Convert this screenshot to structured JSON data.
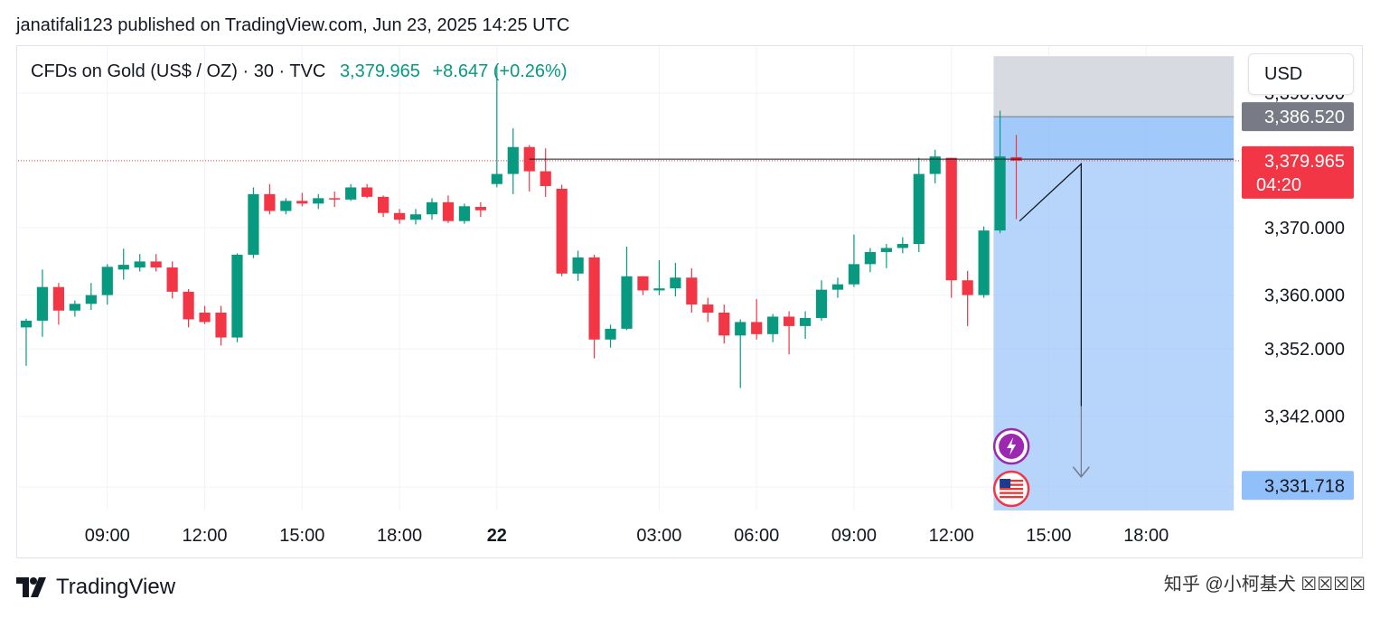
{
  "header": {
    "text": "janatifali123 published on TradingView.com, Jun 23, 2025 14:25 UTC"
  },
  "symbol": {
    "name": "CFDs on Gold (US$ / OZ) · 30 · TVC",
    "last": "3,379.965",
    "change": "+8.647 (+0.26%)"
  },
  "currency_button": "USD",
  "footer": {
    "brand": "TradingView",
    "watermark": "知乎 @小柯基犬 ☒☒☒☒"
  },
  "colors": {
    "up": "#089981",
    "down": "#f23645",
    "grid": "#f0f3fa",
    "stop_zone": "#d1d4dc",
    "target_zone": "#90bff9",
    "label_gray": "#787b86",
    "label_red": "#f23645",
    "label_blue": "#90bff9",
    "current_price_line": "#f23645"
  },
  "chart_data": {
    "type": "candlestick",
    "title": "CFDs on Gold (US$ / OZ) · 30 · TVC",
    "interval": "30",
    "grid": true,
    "ylim": [
      3328,
      3397
    ],
    "xlim": [
      -0.5,
      74.5
    ],
    "price_ticks": [
      "3,390.000",
      "3,370.000",
      "3,360.000",
      "3,352.000",
      "3,342.000"
    ],
    "price_tick_values": [
      3390,
      3370,
      3360,
      3352,
      3342
    ],
    "time_ticks": [
      {
        "label": "09:00",
        "index": 5,
        "bold": false
      },
      {
        "label": "12:00",
        "index": 11,
        "bold": false
      },
      {
        "label": "15:00",
        "index": 17,
        "bold": false
      },
      {
        "label": "18:00",
        "index": 23,
        "bold": false
      },
      {
        "label": "22",
        "index": 29,
        "bold": true
      },
      {
        "label": "03:00",
        "index": 39,
        "bold": false
      },
      {
        "label": "06:00",
        "index": 45,
        "bold": false
      },
      {
        "label": "09:00",
        "index": 51,
        "bold": false
      },
      {
        "label": "12:00",
        "index": 57,
        "bold": false
      },
      {
        "label": "15:00",
        "index": 63,
        "bold": false
      },
      {
        "label": "18:00",
        "index": 69,
        "bold": false
      }
    ],
    "candles": [
      {
        "o": 3355.2,
        "h": 3356.5,
        "l": 3349.5,
        "c": 3356.2
      },
      {
        "o": 3356.2,
        "h": 3363.8,
        "l": 3353.8,
        "c": 3361.2
      },
      {
        "o": 3361.2,
        "h": 3361.8,
        "l": 3355.6,
        "c": 3357.7
      },
      {
        "o": 3357.7,
        "h": 3359.2,
        "l": 3356.8,
        "c": 3358.7
      },
      {
        "o": 3358.7,
        "h": 3361.8,
        "l": 3357.8,
        "c": 3360.0
      },
      {
        "o": 3360.0,
        "h": 3364.6,
        "l": 3358.6,
        "c": 3364.2
      },
      {
        "o": 3363.8,
        "h": 3366.9,
        "l": 3362.3,
        "c": 3364.5
      },
      {
        "o": 3364.1,
        "h": 3366.1,
        "l": 3363.5,
        "c": 3365.0
      },
      {
        "o": 3365.0,
        "h": 3366.1,
        "l": 3363.5,
        "c": 3364.1
      },
      {
        "o": 3364.1,
        "h": 3365.0,
        "l": 3359.5,
        "c": 3360.5
      },
      {
        "o": 3360.5,
        "h": 3360.9,
        "l": 3355.2,
        "c": 3356.4
      },
      {
        "o": 3357.4,
        "h": 3358.4,
        "l": 3355.7,
        "c": 3356.0
      },
      {
        "o": 3357.4,
        "h": 3358.4,
        "l": 3352.5,
        "c": 3353.7
      },
      {
        "o": 3353.7,
        "h": 3366.2,
        "l": 3353.0,
        "c": 3366.0
      },
      {
        "o": 3366.0,
        "h": 3376.0,
        "l": 3365.5,
        "c": 3375.0
      },
      {
        "o": 3375.0,
        "h": 3376.5,
        "l": 3372.0,
        "c": 3372.5
      },
      {
        "o": 3372.5,
        "h": 3374.4,
        "l": 3372.0,
        "c": 3374.0
      },
      {
        "o": 3374.0,
        "h": 3375.2,
        "l": 3373.2,
        "c": 3373.6
      },
      {
        "o": 3373.6,
        "h": 3375.0,
        "l": 3372.8,
        "c": 3374.4
      },
      {
        "o": 3374.4,
        "h": 3375.4,
        "l": 3373.1,
        "c": 3374.2
      },
      {
        "o": 3374.2,
        "h": 3376.5,
        "l": 3374.0,
        "c": 3376.0
      },
      {
        "o": 3376.0,
        "h": 3376.5,
        "l": 3374.4,
        "c": 3374.6
      },
      {
        "o": 3374.6,
        "h": 3374.8,
        "l": 3371.6,
        "c": 3372.2
      },
      {
        "o": 3372.2,
        "h": 3372.8,
        "l": 3370.6,
        "c": 3371.2
      },
      {
        "o": 3371.2,
        "h": 3372.8,
        "l": 3370.5,
        "c": 3372.0
      },
      {
        "o": 3372.0,
        "h": 3374.4,
        "l": 3371.2,
        "c": 3373.8
      },
      {
        "o": 3373.8,
        "h": 3374.8,
        "l": 3370.7,
        "c": 3371.0
      },
      {
        "o": 3371.0,
        "h": 3373.6,
        "l": 3370.6,
        "c": 3373.2
      },
      {
        "o": 3373.1,
        "h": 3373.8,
        "l": 3371.6,
        "c": 3372.6
      },
      {
        "o": 3376.5,
        "h": 3394.0,
        "l": 3376.0,
        "c": 3378.0
      },
      {
        "o": 3378.0,
        "h": 3384.8,
        "l": 3375.0,
        "c": 3382.0
      },
      {
        "o": 3382.0,
        "h": 3382.3,
        "l": 3375.4,
        "c": 3378.4
      },
      {
        "o": 3378.4,
        "h": 3381.8,
        "l": 3374.6,
        "c": 3376.2
      },
      {
        "o": 3375.8,
        "h": 3376.4,
        "l": 3362.8,
        "c": 3363.2
      },
      {
        "o": 3363.2,
        "h": 3366.6,
        "l": 3362.1,
        "c": 3365.6
      },
      {
        "o": 3365.6,
        "h": 3366.0,
        "l": 3350.6,
        "c": 3353.4
      },
      {
        "o": 3353.4,
        "h": 3355.6,
        "l": 3352.2,
        "c": 3355.0
      },
      {
        "o": 3355.0,
        "h": 3367.2,
        "l": 3354.8,
        "c": 3362.8
      },
      {
        "o": 3362.8,
        "h": 3362.8,
        "l": 3360.0,
        "c": 3360.7
      },
      {
        "o": 3360.7,
        "h": 3365.2,
        "l": 3360.0,
        "c": 3361.0
      },
      {
        "o": 3361.0,
        "h": 3364.8,
        "l": 3359.8,
        "c": 3362.6
      },
      {
        "o": 3362.6,
        "h": 3364.0,
        "l": 3357.4,
        "c": 3358.6
      },
      {
        "o": 3358.6,
        "h": 3359.6,
        "l": 3356.0,
        "c": 3357.4
      },
      {
        "o": 3357.4,
        "h": 3358.6,
        "l": 3352.8,
        "c": 3354.0
      },
      {
        "o": 3354.0,
        "h": 3356.4,
        "l": 3346.2,
        "c": 3356.0
      },
      {
        "o": 3356.0,
        "h": 3359.4,
        "l": 3353.4,
        "c": 3354.2
      },
      {
        "o": 3354.2,
        "h": 3357.2,
        "l": 3353.0,
        "c": 3356.8
      },
      {
        "o": 3356.8,
        "h": 3357.6,
        "l": 3351.2,
        "c": 3355.4
      },
      {
        "o": 3355.4,
        "h": 3357.6,
        "l": 3353.5,
        "c": 3356.6
      },
      {
        "o": 3356.6,
        "h": 3362.2,
        "l": 3356.2,
        "c": 3360.8
      },
      {
        "o": 3360.8,
        "h": 3362.6,
        "l": 3359.6,
        "c": 3361.6
      },
      {
        "o": 3361.6,
        "h": 3369.0,
        "l": 3361.2,
        "c": 3364.6
      },
      {
        "o": 3364.6,
        "h": 3367.0,
        "l": 3363.4,
        "c": 3366.4
      },
      {
        "o": 3366.4,
        "h": 3367.6,
        "l": 3364.0,
        "c": 3367.0
      },
      {
        "o": 3367.0,
        "h": 3368.6,
        "l": 3366.2,
        "c": 3367.6
      },
      {
        "o": 3367.6,
        "h": 3380.4,
        "l": 3366.4,
        "c": 3378.0
      },
      {
        "o": 3378.0,
        "h": 3381.6,
        "l": 3376.6,
        "c": 3380.6
      },
      {
        "o": 3380.4,
        "h": 3380.4,
        "l": 3359.6,
        "c": 3362.2
      },
      {
        "o": 3362.2,
        "h": 3363.6,
        "l": 3355.4,
        "c": 3360.0
      },
      {
        "o": 3360.0,
        "h": 3370.2,
        "l": 3359.6,
        "c": 3369.6
      },
      {
        "o": 3369.6,
        "h": 3387.4,
        "l": 3369.2,
        "c": 3380.6
      },
      {
        "o": 3380.5,
        "h": 3383.8,
        "l": 3371.3,
        "c": 3379.965
      }
    ],
    "levels": {
      "stop": "3,386.520",
      "current": "3,379.965",
      "countdown": "04:20",
      "target": "3,331.718"
    },
    "levels_values": {
      "stop": 3386.52,
      "current": 3379.965,
      "target": 3331.718,
      "zone_top": 3395.5,
      "entry": 3380.2
    },
    "position_zone_x": [
      59.6,
      74.4
    ],
    "horizontal_line": {
      "from_index": 31,
      "to_index": 74.4,
      "price": 3380.2
    },
    "drawn_path": [
      [
        61.2,
        3371.0
      ],
      [
        65.0,
        3379.5
      ],
      [
        65.0,
        3343.5
      ]
    ],
    "arrow_tip": [
      65.0,
      3333.0
    ],
    "event_icons": [
      "lightning-icon",
      "us-flag-icon"
    ]
  }
}
